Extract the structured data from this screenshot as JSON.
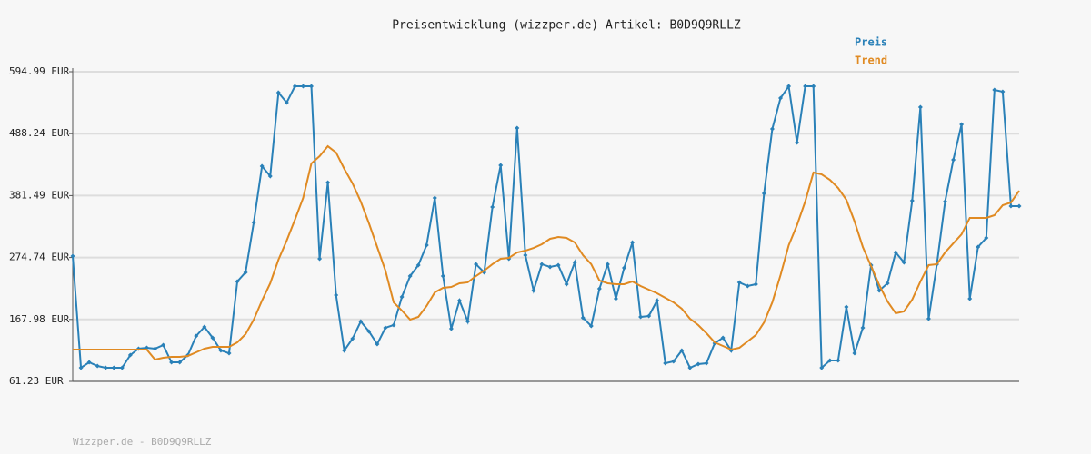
{
  "chart_data": {
    "type": "line",
    "title": "Preisentwicklung (wizzper.de) Artikel: B0D9Q9RLLZ",
    "footer": "Wizzper.de - B0D9Q9RLLZ",
    "ylim": [
      61.23,
      594.99
    ],
    "yticks": [
      {
        "value": 61.23,
        "label": "61.23 EUR"
      },
      {
        "value": 167.98,
        "label": "167.98 EUR"
      },
      {
        "value": 274.74,
        "label": "274.74 EUR"
      },
      {
        "value": 381.49,
        "label": "381.49 EUR"
      },
      {
        "value": 488.24,
        "label": "488.24 EUR"
      },
      {
        "value": 594.99,
        "label": "594.99 EUR"
      }
    ],
    "grid": true,
    "legend": "top-right",
    "series": [
      {
        "name": "Preis",
        "color": "#2a81b8",
        "values": [
          277.2,
          84.7,
          94.1,
          87.8,
          84.7,
          84.7,
          84.7,
          106.6,
          117.6,
          119.2,
          117.6,
          123.8,
          94.1,
          94.1,
          106.6,
          139.5,
          155.1,
          136.4,
          114.5,
          109.7,
          233.4,
          249.1,
          335.2,
          432.2,
          415.0,
          559.0,
          541.8,
          569.95,
          569.95,
          569.95,
          272.5,
          404.0,
          210.0,
          114.5,
          134.8,
          164.5,
          147.3,
          125.4,
          153.6,
          158.3,
          206.8,
          242.8,
          261.6,
          296.0,
          377.4,
          242.8,
          152.0,
          200.5,
          164.5,
          263.2,
          249.1,
          361.8,
          433.8,
          272.5,
          497.9,
          278.8,
          217.8,
          263.2,
          258.5,
          261.6,
          228.7,
          266.3,
          170.8,
          156.7,
          220.9,
          263.2,
          203.7,
          256.9,
          300.7,
          172.4,
          173.9,
          200.5,
          92.5,
          95.7,
          114.5,
          84.7,
          91.0,
          92.5,
          127.0,
          136.4,
          114.5,
          231.8,
          225.6,
          228.7,
          385.2,
          496.4,
          549.6,
          569.95,
          472.9,
          569.95,
          569.95,
          84.7,
          97.2,
          97.2,
          189.6,
          109.7,
          153.6,
          261.6,
          217.8,
          230.3,
          283.5,
          266.3,
          372.7,
          533.9,
          169.2,
          263.2,
          371.2,
          443.2,
          504.2,
          203.7,
          292.9,
          308.5,
          563.7,
          560.5,
          363.3,
          363.3
        ]
      },
      {
        "name": "Trend",
        "color": "#e08a22",
        "values": [
          116.0,
          116.0,
          116.0,
          116.0,
          116.0,
          116.0,
          116.0,
          116.0,
          116.0,
          116.0,
          98.8,
          101.9,
          103.5,
          103.5,
          105.1,
          111.3,
          117.6,
          120.7,
          120.7,
          120.7,
          128.5,
          142.6,
          167.7,
          200.5,
          230.3,
          271.0,
          303.9,
          339.9,
          377.4,
          436.9,
          449.4,
          466.6,
          455.7,
          427.5,
          402.5,
          371.2,
          333.6,
          292.9,
          252.2,
          197.4,
          183.3,
          167.7,
          172.4,
          191.2,
          214.6,
          222.5,
          224.0,
          230.3,
          231.9,
          242.8,
          252.2,
          263.2,
          272.5,
          274.1,
          283.5,
          286.6,
          291.3,
          297.6,
          307.0,
          310.1,
          308.5,
          300.7,
          278.8,
          263.2,
          235.0,
          230.3,
          228.7,
          228.7,
          233.4,
          225.6,
          219.3,
          213.1,
          205.2,
          197.4,
          186.5,
          169.2,
          158.3,
          144.2,
          128.5,
          122.3,
          116.0,
          119.1,
          130.1,
          141.1,
          163.0,
          197.4,
          244.4,
          296.0,
          330.5,
          371.2,
          421.3,
          418.1,
          408.7,
          394.6,
          374.3,
          336.7,
          292.9,
          260.0,
          227.2,
          199.0,
          178.6,
          181.8,
          202.1,
          233.4,
          261.6,
          263.2,
          283.5,
          299.2,
          314.8,
          343.0,
          343.0,
          343.0,
          347.7,
          364.9,
          369.6,
          389.9
        ]
      }
    ]
  }
}
